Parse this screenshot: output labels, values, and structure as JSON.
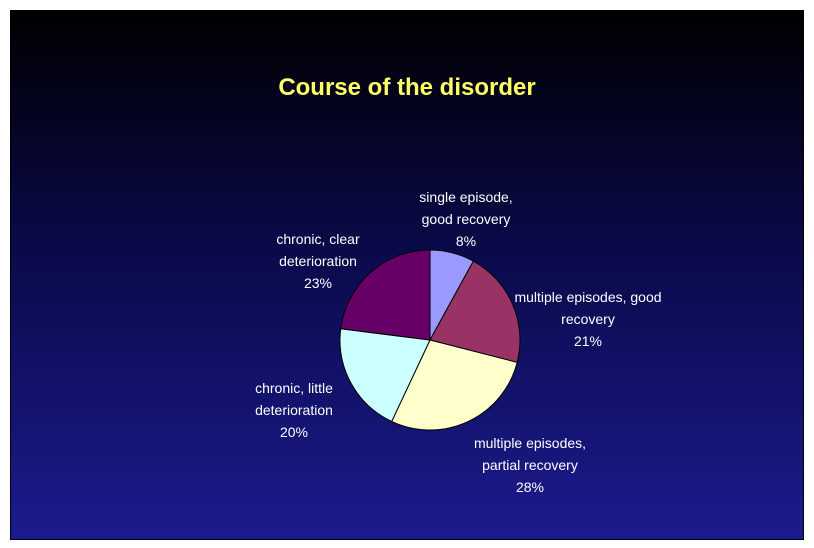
{
  "chart_data": {
    "type": "pie",
    "title": "Course of the disorder",
    "categories": [
      "single episode, good recovery",
      "multiple episodes, good recovery",
      "multiple episodes, partial recovery",
      "chronic, little deterioration",
      "chronic, clear deterioration"
    ],
    "values": [
      8,
      21,
      28,
      20,
      23
    ],
    "value_labels": [
      "8%",
      "21%",
      "28%",
      "20%",
      "23%"
    ],
    "colors": [
      "#9999ff",
      "#993366",
      "#ffffcc",
      "#ccffff",
      "#660066"
    ]
  }
}
